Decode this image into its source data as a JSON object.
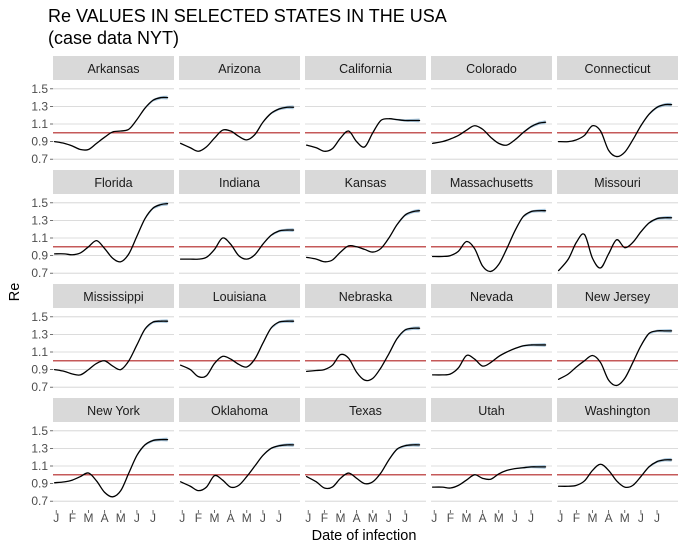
{
  "chart_data": {
    "type": "line",
    "title": "Re VALUES IN SELECTED STATES IN THE USA",
    "subtitle": "(case data NYT)",
    "xlabel": "Date of infection",
    "ylabel": "Re",
    "ylim": [
      0.6,
      1.6
    ],
    "yticks": [
      "0.7",
      "0.9",
      "1.1",
      "1.3",
      "1.5"
    ],
    "ytick_values": [
      0.7,
      0.9,
      1.1,
      1.3,
      1.5
    ],
    "xticks": [
      "J",
      "F",
      "M",
      "A",
      "M",
      "J",
      "J"
    ],
    "xtick_months": [
      1,
      2,
      3,
      4,
      5,
      6,
      7
    ],
    "xlim_months": [
      0.8,
      8.3
    ],
    "reference_line": 1.0,
    "grid": true,
    "colors": {
      "line": "#000000",
      "reference": "#b22222",
      "ci_band": "#8cb4d2",
      "strip": "#d9d9d9"
    },
    "panels": [
      {
        "state": "Arkansas",
        "x": [
          0.9,
          1.5,
          2.0,
          2.5,
          3.0,
          3.5,
          4.0,
          4.5,
          5.0,
          5.5,
          6.0,
          6.5,
          7.0,
          7.5,
          7.9
        ],
        "y": [
          0.9,
          0.88,
          0.85,
          0.81,
          0.81,
          0.88,
          0.95,
          1.01,
          1.02,
          1.04,
          1.15,
          1.28,
          1.37,
          1.4,
          1.4
        ]
      },
      {
        "state": "Arizona",
        "x": [
          0.9,
          1.5,
          2.0,
          2.5,
          3.0,
          3.5,
          4.0,
          4.5,
          5.0,
          5.5,
          6.0,
          6.5,
          7.0,
          7.5,
          7.9
        ],
        "y": [
          0.88,
          0.83,
          0.79,
          0.84,
          0.94,
          1.03,
          1.02,
          0.96,
          0.92,
          0.98,
          1.12,
          1.22,
          1.27,
          1.29,
          1.29
        ]
      },
      {
        "state": "California",
        "x": [
          0.9,
          1.5,
          2.0,
          2.5,
          3.0,
          3.5,
          4.0,
          4.5,
          5.0,
          5.5,
          6.0,
          6.5,
          7.0,
          7.5,
          7.9
        ],
        "y": [
          0.86,
          0.83,
          0.79,
          0.82,
          0.94,
          1.02,
          0.9,
          0.84,
          1.0,
          1.14,
          1.16,
          1.15,
          1.14,
          1.14,
          1.14
        ]
      },
      {
        "state": "Colorado",
        "x": [
          0.9,
          1.5,
          2.0,
          2.5,
          3.0,
          3.5,
          4.0,
          4.5,
          5.0,
          5.5,
          6.0,
          6.5,
          7.0,
          7.5,
          7.9
        ],
        "y": [
          0.88,
          0.9,
          0.93,
          0.97,
          1.03,
          1.08,
          1.04,
          0.95,
          0.88,
          0.86,
          0.92,
          1.0,
          1.07,
          1.11,
          1.12
        ]
      },
      {
        "state": "Connecticut",
        "x": [
          0.9,
          1.5,
          2.0,
          2.5,
          3.0,
          3.5,
          4.0,
          4.5,
          5.0,
          5.5,
          6.0,
          6.5,
          7.0,
          7.5,
          7.9
        ],
        "y": [
          0.9,
          0.9,
          0.92,
          0.97,
          1.08,
          1.02,
          0.8,
          0.73,
          0.78,
          0.92,
          1.08,
          1.21,
          1.29,
          1.32,
          1.32
        ]
      },
      {
        "state": "Florida",
        "x": [
          0.9,
          1.5,
          2.0,
          2.5,
          3.0,
          3.5,
          4.0,
          4.5,
          5.0,
          5.5,
          6.0,
          6.5,
          7.0,
          7.5,
          7.9
        ],
        "y": [
          0.92,
          0.92,
          0.91,
          0.93,
          1.0,
          1.07,
          0.98,
          0.87,
          0.83,
          0.92,
          1.12,
          1.32,
          1.44,
          1.48,
          1.49
        ]
      },
      {
        "state": "Indiana",
        "x": [
          0.9,
          1.5,
          2.0,
          2.5,
          3.0,
          3.5,
          4.0,
          4.5,
          5.0,
          5.5,
          6.0,
          6.5,
          7.0,
          7.5,
          7.9
        ],
        "y": [
          0.86,
          0.86,
          0.86,
          0.88,
          0.97,
          1.1,
          1.03,
          0.9,
          0.86,
          0.91,
          1.03,
          1.13,
          1.18,
          1.19,
          1.19
        ]
      },
      {
        "state": "Kansas",
        "x": [
          0.9,
          1.5,
          2.0,
          2.5,
          3.0,
          3.5,
          4.0,
          4.5,
          5.0,
          5.5,
          6.0,
          6.5,
          7.0,
          7.5,
          7.9
        ],
        "y": [
          0.88,
          0.86,
          0.83,
          0.85,
          0.94,
          1.01,
          1.0,
          0.97,
          0.94,
          0.98,
          1.1,
          1.25,
          1.36,
          1.4,
          1.41
        ]
      },
      {
        "state": "Massachusetts",
        "x": [
          0.9,
          1.5,
          2.0,
          2.5,
          3.0,
          3.5,
          4.0,
          4.5,
          5.0,
          5.5,
          6.0,
          6.5,
          7.0,
          7.5,
          7.9
        ],
        "y": [
          0.89,
          0.89,
          0.9,
          0.95,
          1.06,
          0.98,
          0.78,
          0.72,
          0.8,
          0.98,
          1.18,
          1.34,
          1.4,
          1.41,
          1.41
        ]
      },
      {
        "state": "Missouri",
        "x": [
          0.9,
          1.5,
          2.0,
          2.5,
          3.0,
          3.5,
          4.0,
          4.5,
          5.0,
          5.5,
          6.0,
          6.5,
          7.0,
          7.5,
          7.9
        ],
        "y": [
          0.73,
          0.86,
          1.05,
          1.14,
          0.87,
          0.76,
          0.92,
          1.08,
          0.99,
          1.05,
          1.17,
          1.27,
          1.32,
          1.33,
          1.33
        ]
      },
      {
        "state": "Mississippi",
        "x": [
          0.9,
          1.5,
          2.0,
          2.5,
          3.0,
          3.5,
          4.0,
          4.5,
          5.0,
          5.5,
          6.0,
          6.5,
          7.0,
          7.5,
          7.9
        ],
        "y": [
          0.9,
          0.88,
          0.85,
          0.84,
          0.9,
          0.97,
          1.0,
          0.94,
          0.9,
          1.0,
          1.18,
          1.36,
          1.44,
          1.45,
          1.45
        ]
      },
      {
        "state": "Louisiana",
        "x": [
          0.9,
          1.5,
          2.0,
          2.5,
          3.0,
          3.5,
          4.0,
          4.5,
          5.0,
          5.5,
          6.0,
          6.5,
          7.0,
          7.5,
          7.9
        ],
        "y": [
          0.95,
          0.9,
          0.82,
          0.83,
          0.97,
          1.05,
          1.02,
          0.96,
          0.93,
          1.02,
          1.2,
          1.37,
          1.44,
          1.45,
          1.45
        ]
      },
      {
        "state": "Nebraska",
        "x": [
          0.9,
          1.5,
          2.0,
          2.5,
          3.0,
          3.5,
          4.0,
          4.5,
          5.0,
          5.5,
          6.0,
          6.5,
          7.0,
          7.5,
          7.9
        ],
        "y": [
          0.88,
          0.89,
          0.9,
          0.95,
          1.07,
          1.03,
          0.87,
          0.78,
          0.8,
          0.92,
          1.08,
          1.25,
          1.35,
          1.37,
          1.37
        ]
      },
      {
        "state": "Nevada",
        "x": [
          0.9,
          1.5,
          2.0,
          2.5,
          3.0,
          3.5,
          4.0,
          4.5,
          5.0,
          5.5,
          6.0,
          6.5,
          7.0,
          7.5,
          7.9
        ],
        "y": [
          0.84,
          0.84,
          0.85,
          0.92,
          1.06,
          1.02,
          0.94,
          0.98,
          1.05,
          1.1,
          1.14,
          1.17,
          1.18,
          1.18,
          1.18
        ]
      },
      {
        "state": "New Jersey",
        "x": [
          0.9,
          1.5,
          2.0,
          2.5,
          3.0,
          3.5,
          4.0,
          4.5,
          5.0,
          5.5,
          6.0,
          6.5,
          7.0,
          7.5,
          7.9
        ],
        "y": [
          0.79,
          0.85,
          0.93,
          1.0,
          1.06,
          0.98,
          0.78,
          0.72,
          0.8,
          0.98,
          1.17,
          1.31,
          1.34,
          1.34,
          1.34
        ]
      },
      {
        "state": "New York",
        "x": [
          0.9,
          1.5,
          2.0,
          2.5,
          3.0,
          3.5,
          4.0,
          4.5,
          5.0,
          5.5,
          6.0,
          6.5,
          7.0,
          7.5,
          7.9
        ],
        "y": [
          0.91,
          0.92,
          0.94,
          0.98,
          1.02,
          0.93,
          0.8,
          0.75,
          0.82,
          1.02,
          1.22,
          1.34,
          1.39,
          1.4,
          1.4
        ]
      },
      {
        "state": "Oklahoma",
        "x": [
          0.9,
          1.5,
          2.0,
          2.5,
          3.0,
          3.5,
          4.0,
          4.5,
          5.0,
          5.5,
          6.0,
          6.5,
          7.0,
          7.5,
          7.9
        ],
        "y": [
          0.92,
          0.87,
          0.82,
          0.86,
          0.99,
          0.94,
          0.86,
          0.88,
          0.98,
          1.1,
          1.22,
          1.3,
          1.33,
          1.34,
          1.34
        ]
      },
      {
        "state": "Texas",
        "x": [
          0.9,
          1.5,
          2.0,
          2.5,
          3.0,
          3.5,
          4.0,
          4.5,
          5.0,
          5.5,
          6.0,
          6.5,
          7.0,
          7.5,
          7.9
        ],
        "y": [
          0.98,
          0.92,
          0.85,
          0.86,
          0.96,
          1.02,
          0.96,
          0.9,
          0.92,
          1.02,
          1.17,
          1.29,
          1.33,
          1.34,
          1.34
        ]
      },
      {
        "state": "Utah",
        "x": [
          0.9,
          1.5,
          2.0,
          2.5,
          3.0,
          3.5,
          4.0,
          4.5,
          5.0,
          5.5,
          6.0,
          6.5,
          7.0,
          7.5,
          7.9
        ],
        "y": [
          0.86,
          0.86,
          0.85,
          0.88,
          0.94,
          1.0,
          0.96,
          0.95,
          1.01,
          1.05,
          1.07,
          1.08,
          1.09,
          1.09,
          1.09
        ]
      },
      {
        "state": "Washington",
        "x": [
          0.9,
          1.5,
          2.0,
          2.5,
          3.0,
          3.5,
          4.0,
          4.5,
          5.0,
          5.5,
          6.0,
          6.5,
          7.0,
          7.5,
          7.9
        ],
        "y": [
          0.87,
          0.87,
          0.88,
          0.93,
          1.05,
          1.12,
          1.05,
          0.93,
          0.86,
          0.88,
          0.98,
          1.09,
          1.15,
          1.17,
          1.17
        ]
      }
    ]
  }
}
